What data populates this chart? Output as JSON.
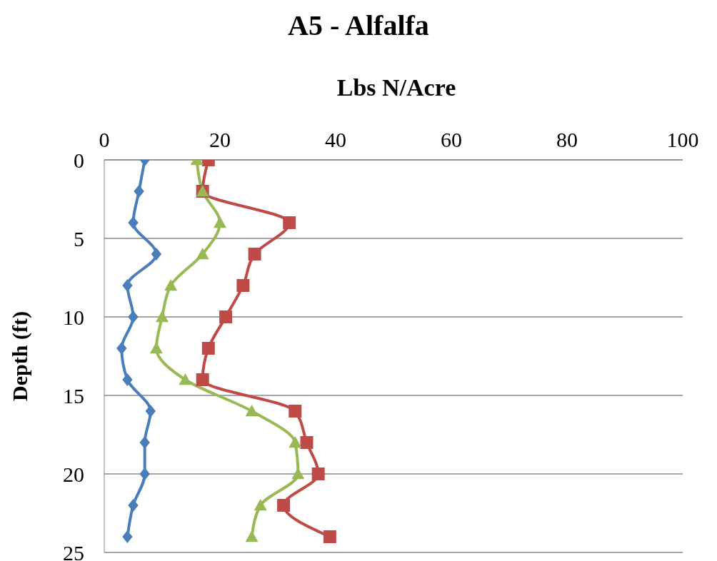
{
  "chart_data": {
    "type": "line",
    "title": "A5 - Alfalfa",
    "xlabel": "Lbs N/Acre",
    "ylabel": "Depth (ft)",
    "orientation": "horizontal",
    "x": [
      0,
      2,
      4,
      6,
      8,
      10,
      12,
      14,
      16,
      18,
      20,
      22,
      24
    ],
    "series": [
      {
        "color": "#4a7ebb",
        "marker": "diamond",
        "values": [
          7,
          6,
          5,
          9,
          4,
          5,
          3,
          4,
          8,
          7,
          7,
          5,
          4
        ]
      },
      {
        "color": "#be4b48",
        "marker": "square",
        "values": [
          18,
          17,
          32,
          26,
          24,
          21,
          18,
          17,
          33,
          35,
          37,
          31,
          39
        ]
      },
      {
        "color": "#98b954",
        "marker": "triangle",
        "values": [
          16,
          17,
          20,
          17,
          11.5,
          10,
          9,
          14,
          25.5,
          33,
          33.5,
          27,
          25.5
        ]
      }
    ],
    "xlim": [
      0,
      100
    ],
    "xticks": [
      0,
      20,
      40,
      60,
      80,
      100
    ],
    "ylim": [
      25,
      0
    ],
    "yticks": [
      0,
      5,
      10,
      15,
      20,
      25
    ],
    "grid": "y"
  }
}
